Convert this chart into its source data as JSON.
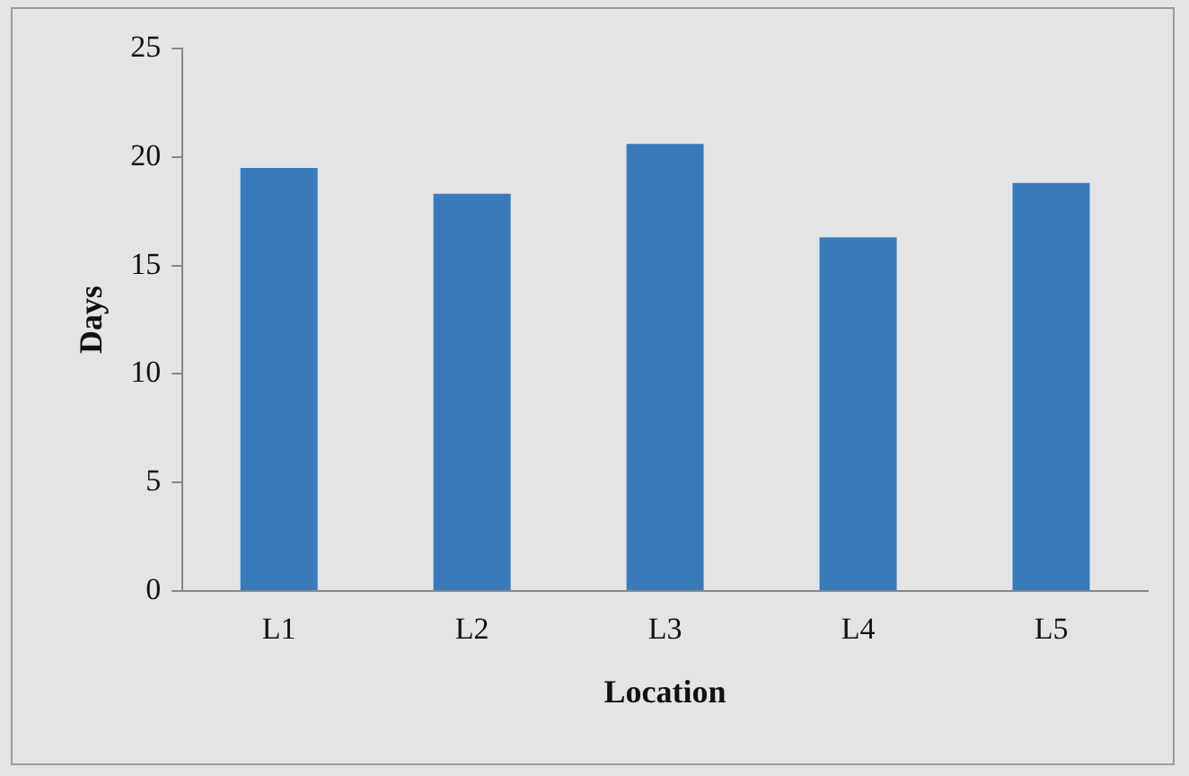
{
  "chart_data": {
    "type": "bar",
    "xlabel": "Location",
    "ylabel": "Days",
    "categories": [
      "L1",
      "L2",
      "L3",
      "L4",
      "L5"
    ],
    "values": [
      19.5,
      18.3,
      20.6,
      16.3,
      18.8
    ],
    "color": "#3a7ab8",
    "ylim": [
      0,
      25
    ],
    "yticks": [
      0,
      5,
      10,
      15,
      20,
      25
    ],
    "grid": false,
    "legend": false
  }
}
